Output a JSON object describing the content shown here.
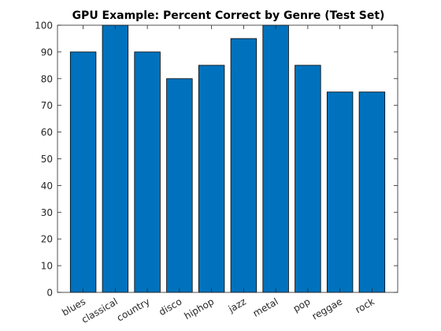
{
  "chart_data": {
    "type": "bar",
    "title": "GPU Example: Percent Correct by Genre (Test Set)",
    "xlabel": "",
    "ylabel": "",
    "categories": [
      "blues",
      "classical",
      "country",
      "disco",
      "hiphop",
      "jazz",
      "metal",
      "pop",
      "reggae",
      "rock"
    ],
    "values": [
      90,
      100,
      90,
      80,
      85,
      95,
      100,
      85,
      75,
      75
    ],
    "ylim": [
      0,
      100
    ],
    "yticks": [
      0,
      10,
      20,
      30,
      40,
      50,
      60,
      70,
      80,
      90,
      100
    ],
    "grid": false,
    "legend": "none",
    "colors": {
      "bar_fill": "#0072BD",
      "bar_stroke": "#000000",
      "axis": "#262626",
      "text": "#262626",
      "title": "#000000",
      "background": "#ffffff"
    }
  }
}
